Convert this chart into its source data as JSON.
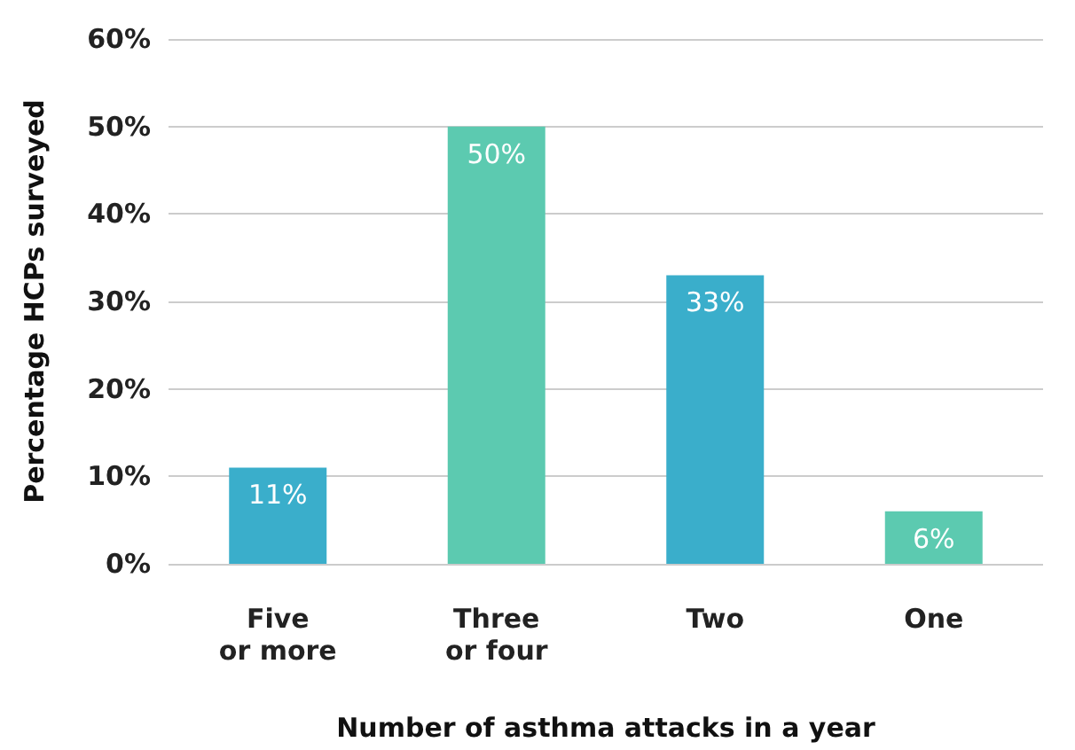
{
  "chart_data": {
    "type": "bar",
    "xlabel": "Number of asthma attacks in a year",
    "ylabel": "Percentage HCPs surveyed",
    "categories": [
      "Five\nor more",
      "Three\nor four",
      "Two",
      "One"
    ],
    "values": [
      11,
      50,
      33,
      6
    ],
    "colors": [
      "#3aaecb",
      "#5ccab0",
      "#3aaecb",
      "#5ccab0"
    ],
    "value_labels": [
      "11%",
      "50%",
      "33%",
      "6%"
    ],
    "ylim": [
      0,
      60
    ],
    "yticks": [
      {
        "value": 0,
        "label": "0%"
      },
      {
        "value": 10,
        "label": "10%"
      },
      {
        "value": 20,
        "label": "20%"
      },
      {
        "value": 30,
        "label": "30%"
      },
      {
        "value": 40,
        "label": "40%"
      },
      {
        "value": 50,
        "label": "50%"
      },
      {
        "value": 60,
        "label": "60%"
      }
    ],
    "grid": "y"
  }
}
